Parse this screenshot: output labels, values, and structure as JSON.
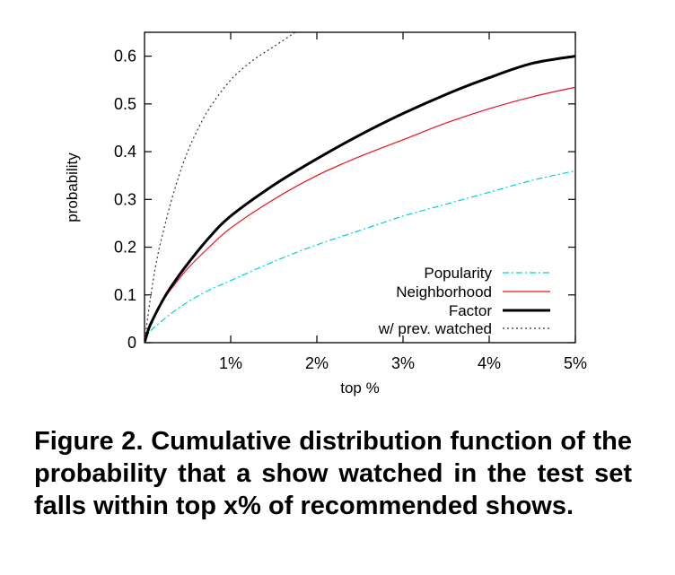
{
  "caption": "Figure 2. Cumulative distribution function of the probability that a show watched in the test set falls within top x% of recommended shows.",
  "chart_data": {
    "type": "line",
    "title": "",
    "xlabel": "top %",
    "ylabel": "probability",
    "xlim": [
      0,
      5
    ],
    "ylim": [
      0,
      0.65
    ],
    "x_ticks": [
      {
        "value": 1,
        "label": "1%"
      },
      {
        "value": 2,
        "label": "2%"
      },
      {
        "value": 3,
        "label": "3%"
      },
      {
        "value": 4,
        "label": "4%"
      },
      {
        "value": 5,
        "label": "5%"
      }
    ],
    "y_ticks": [
      {
        "value": 0,
        "label": "0"
      },
      {
        "value": 0.1,
        "label": "0.1"
      },
      {
        "value": 0.2,
        "label": "0.2"
      },
      {
        "value": 0.3,
        "label": "0.3"
      },
      {
        "value": 0.4,
        "label": "0.4"
      },
      {
        "value": 0.5,
        "label": "0.5"
      },
      {
        "value": 0.6,
        "label": "0.6"
      }
    ],
    "grid": false,
    "legend_position": "bottom-right",
    "series": [
      {
        "name": "Popularity",
        "color": "#00cfe0",
        "style": "dashdot",
        "width": 1.2,
        "x": [
          0,
          0.05,
          0.1,
          0.2,
          0.3,
          0.5,
          0.75,
          1,
          1.5,
          2,
          2.5,
          3,
          3.5,
          4,
          4.5,
          5
        ],
        "y": [
          0,
          0.02,
          0.03,
          0.045,
          0.06,
          0.085,
          0.11,
          0.13,
          0.17,
          0.205,
          0.235,
          0.265,
          0.29,
          0.315,
          0.34,
          0.36
        ]
      },
      {
        "name": "Neighborhood",
        "color": "#e8141c",
        "style": "solid",
        "width": 1.2,
        "x": [
          0,
          0.05,
          0.1,
          0.2,
          0.3,
          0.5,
          0.75,
          1,
          1.5,
          2,
          2.5,
          3,
          3.5,
          4,
          4.5,
          5
        ],
        "y": [
          0,
          0.03,
          0.05,
          0.085,
          0.11,
          0.155,
          0.2,
          0.24,
          0.3,
          0.35,
          0.39,
          0.425,
          0.46,
          0.49,
          0.515,
          0.535
        ]
      },
      {
        "name": "Factor",
        "color": "#000000",
        "style": "solid",
        "width": 3,
        "x": [
          0,
          0.05,
          0.1,
          0.2,
          0.3,
          0.5,
          0.75,
          1,
          1.5,
          2,
          2.5,
          3,
          3.5,
          4,
          4.5,
          5
        ],
        "y": [
          0,
          0.03,
          0.05,
          0.085,
          0.115,
          0.165,
          0.22,
          0.265,
          0.33,
          0.385,
          0.435,
          0.48,
          0.52,
          0.555,
          0.585,
          0.6
        ]
      },
      {
        "name": "w/ prev. watched",
        "color": "#333333",
        "style": "dotted",
        "width": 1.2,
        "x": [
          0,
          0.05,
          0.1,
          0.15,
          0.2,
          0.3,
          0.4,
          0.5,
          0.6,
          0.75,
          1,
          1.25,
          1.5,
          1.75
        ],
        "y": [
          0,
          0.07,
          0.13,
          0.18,
          0.22,
          0.29,
          0.35,
          0.4,
          0.44,
          0.49,
          0.55,
          0.59,
          0.62,
          0.65
        ]
      }
    ]
  }
}
